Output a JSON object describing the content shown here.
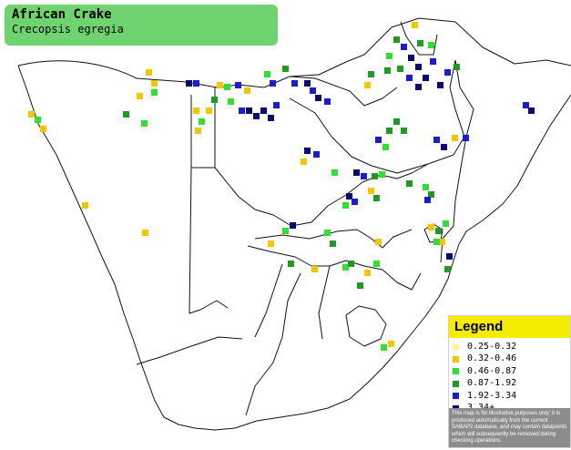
{
  "title": {
    "common_name": "African Crake",
    "scientific_name": "Crecopsis egregia"
  },
  "legend": {
    "heading": "Legend",
    "classes": [
      {
        "range": "0.25-0.32",
        "color": "#fff59a"
      },
      {
        "range": "0.32-0.46",
        "color": "#f2c600"
      },
      {
        "range": "0.46-0.87",
        "color": "#33dd33"
      },
      {
        "range": "0.87-1.92",
        "color": "#229922"
      },
      {
        "range": "1.92-3.34",
        "color": "#1c1ccc"
      },
      {
        "range": "3.34+",
        "color": "#0a0a6e"
      }
    ],
    "disclaimer": "This map is for illustrative purposes only; it is produced automatically from the current SABAP2 database, and may contain datapoints which will subsequently be removed during checking operations."
  },
  "colors": {
    "title_bg": "#6fd36f",
    "legend_head_bg": "#f6ec00",
    "disclaimer_bg": "#8c8c8c",
    "border": "#000000"
  }
}
